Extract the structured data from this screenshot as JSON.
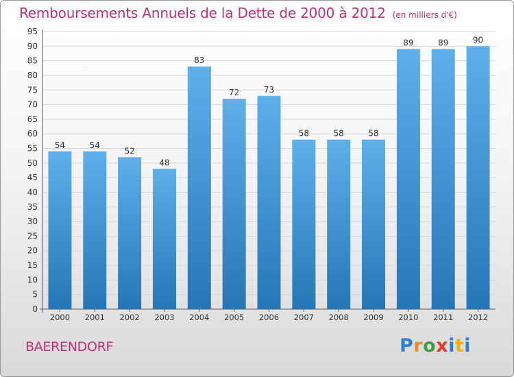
{
  "header": {
    "title": "Remboursements Annuels de la Dette de 2000 à 2012",
    "unit": "(en milliers d'€)"
  },
  "footer": {
    "place": "BAERENDORF",
    "brand": "Proxiti"
  },
  "colors": {
    "title": "#c0307a",
    "bar_top": "#5eb0ea",
    "bar_bottom": "#2576b6",
    "grid": "#d7d7d7"
  },
  "chart_data": {
    "type": "bar",
    "categories": [
      "2000",
      "2001",
      "2002",
      "2003",
      "2004",
      "2005",
      "2006",
      "2007",
      "2008",
      "2009",
      "2010",
      "2011",
      "2012"
    ],
    "values": [
      54,
      54,
      52,
      48,
      83,
      72,
      73,
      58,
      58,
      58,
      89,
      89,
      90
    ],
    "ylim": [
      0,
      95
    ],
    "yticks": [
      0,
      5,
      10,
      15,
      20,
      25,
      30,
      35,
      40,
      45,
      50,
      55,
      60,
      65,
      70,
      75,
      80,
      85,
      90,
      95
    ],
    "grid": true
  }
}
